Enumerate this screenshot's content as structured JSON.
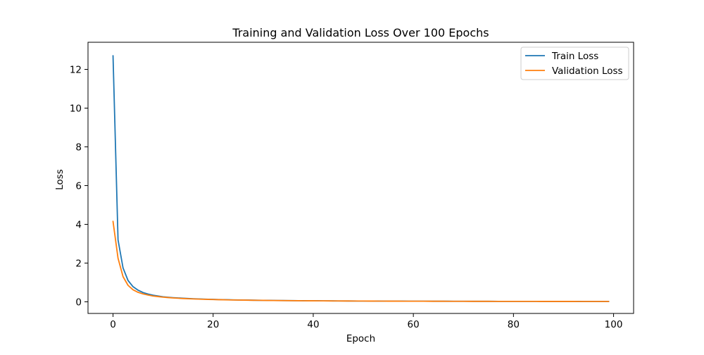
{
  "chart_data": {
    "type": "line",
    "title": "Training and Validation Loss Over 100 Epochs",
    "xlabel": "Epoch",
    "ylabel": "Loss",
    "xlim": [
      -5,
      104
    ],
    "ylim": [
      -0.6,
      13.4
    ],
    "xticks": [
      0,
      20,
      40,
      60,
      80,
      100
    ],
    "yticks": [
      0,
      2,
      4,
      6,
      8,
      10,
      12
    ],
    "grid": false,
    "legend_position": "top-right",
    "series": [
      {
        "name": "Train Loss",
        "color": "#1f77b4",
        "x": [
          0,
          1,
          2,
          3,
          4,
          5,
          6,
          7,
          8,
          9,
          10,
          11,
          12,
          13,
          14,
          15,
          16,
          17,
          18,
          19,
          20,
          21,
          22,
          23,
          24,
          25,
          26,
          27,
          28,
          29,
          30,
          31,
          32,
          33,
          34,
          35,
          36,
          37,
          38,
          39,
          40,
          41,
          42,
          43,
          44,
          45,
          46,
          47,
          48,
          49,
          50,
          51,
          52,
          53,
          54,
          55,
          56,
          57,
          58,
          59,
          60,
          61,
          62,
          63,
          64,
          65,
          66,
          67,
          68,
          69,
          70,
          71,
          72,
          73,
          74,
          75,
          76,
          77,
          78,
          79,
          80,
          81,
          82,
          83,
          84,
          85,
          86,
          87,
          88,
          89,
          90,
          91,
          92,
          93,
          94,
          95,
          96,
          97,
          98,
          99
        ],
        "y": [
          12.7,
          3.2,
          1.75,
          1.1,
          0.78,
          0.6,
          0.48,
          0.4,
          0.34,
          0.3,
          0.26,
          0.235,
          0.215,
          0.2,
          0.185,
          0.17,
          0.16,
          0.15,
          0.14,
          0.132,
          0.125,
          0.118,
          0.112,
          0.106,
          0.1,
          0.096,
          0.092,
          0.088,
          0.084,
          0.08,
          0.077,
          0.074,
          0.071,
          0.068,
          0.066,
          0.063,
          0.061,
          0.059,
          0.057,
          0.055,
          0.053,
          0.052,
          0.05,
          0.049,
          0.047,
          0.046,
          0.045,
          0.044,
          0.043,
          0.042,
          0.041,
          0.04,
          0.039,
          0.038,
          0.037,
          0.036,
          0.035,
          0.035,
          0.034,
          0.033,
          0.032,
          0.032,
          0.031,
          0.031,
          0.03,
          0.03,
          0.029,
          0.029,
          0.028,
          0.028,
          0.027,
          0.027,
          0.026,
          0.026,
          0.025,
          0.025,
          0.025,
          0.024,
          0.024,
          0.024,
          0.023,
          0.023,
          0.023,
          0.022,
          0.022,
          0.022,
          0.021,
          0.021,
          0.021,
          0.021,
          0.02,
          0.02,
          0.02,
          0.02,
          0.019,
          0.019,
          0.019,
          0.019,
          0.018,
          0.018
        ]
      },
      {
        "name": "Validation Loss",
        "color": "#ff7f0e",
        "x": [
          0,
          1,
          2,
          3,
          4,
          5,
          6,
          7,
          8,
          9,
          10,
          11,
          12,
          13,
          14,
          15,
          16,
          17,
          18,
          19,
          20,
          21,
          22,
          23,
          24,
          25,
          26,
          27,
          28,
          29,
          30,
          31,
          32,
          33,
          34,
          35,
          36,
          37,
          38,
          39,
          40,
          41,
          42,
          43,
          44,
          45,
          46,
          47,
          48,
          49,
          50,
          51,
          52,
          53,
          54,
          55,
          56,
          57,
          58,
          59,
          60,
          61,
          62,
          63,
          64,
          65,
          66,
          67,
          68,
          69,
          70,
          71,
          72,
          73,
          74,
          75,
          76,
          77,
          78,
          79,
          80,
          81,
          82,
          83,
          84,
          85,
          86,
          87,
          88,
          89,
          90,
          91,
          92,
          93,
          94,
          95,
          96,
          97,
          98,
          99
        ],
        "y": [
          4.15,
          2.25,
          1.3,
          0.85,
          0.62,
          0.49,
          0.41,
          0.35,
          0.3,
          0.27,
          0.24,
          0.22,
          0.2,
          0.185,
          0.17,
          0.16,
          0.15,
          0.14,
          0.132,
          0.125,
          0.118,
          0.112,
          0.106,
          0.1,
          0.096,
          0.092,
          0.088,
          0.084,
          0.08,
          0.077,
          0.074,
          0.071,
          0.068,
          0.066,
          0.063,
          0.061,
          0.059,
          0.057,
          0.055,
          0.053,
          0.052,
          0.05,
          0.049,
          0.047,
          0.046,
          0.045,
          0.044,
          0.043,
          0.042,
          0.041,
          0.04,
          0.039,
          0.038,
          0.037,
          0.036,
          0.035,
          0.035,
          0.034,
          0.033,
          0.032,
          0.032,
          0.031,
          0.031,
          0.03,
          0.03,
          0.029,
          0.029,
          0.028,
          0.028,
          0.027,
          0.027,
          0.026,
          0.026,
          0.025,
          0.025,
          0.025,
          0.024,
          0.024,
          0.024,
          0.023,
          0.023,
          0.023,
          0.022,
          0.022,
          0.022,
          0.021,
          0.021,
          0.021,
          0.021,
          0.02,
          0.02,
          0.02,
          0.02,
          0.019,
          0.019,
          0.019,
          0.019,
          0.018,
          0.018,
          0.018
        ]
      }
    ]
  }
}
